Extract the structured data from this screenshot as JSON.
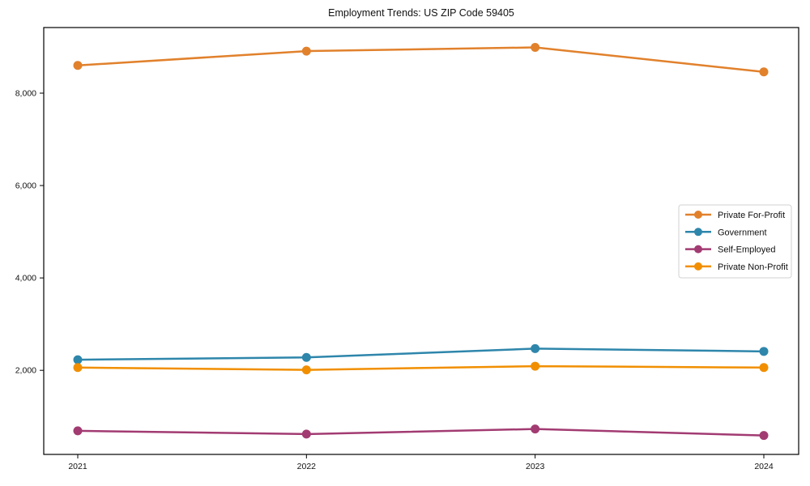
{
  "chart_data": {
    "type": "line",
    "title": "Employment Trends: US ZIP Code 59405",
    "xlabel": "",
    "ylabel": "",
    "grid": false,
    "legend_position": "center-right",
    "x": [
      "2021",
      "2022",
      "2023",
      "2024"
    ],
    "series": [
      {
        "name": "Private For-Profit",
        "color": "#e1812c",
        "values": [
          8600,
          8910,
          8990,
          8460
        ]
      },
      {
        "name": "Government",
        "color": "#2e86ab",
        "values": [
          2230,
          2280,
          2470,
          2410
        ]
      },
      {
        "name": "Self-Employed",
        "color": "#a23b72",
        "values": [
          690,
          620,
          730,
          590
        ]
      },
      {
        "name": "Private Non-Profit",
        "color": "#f18f01",
        "values": [
          2060,
          2010,
          2090,
          2060
        ]
      }
    ],
    "yticks": [
      {
        "value": 2000,
        "label": "2,000"
      },
      {
        "value": 4000,
        "label": "4,000"
      },
      {
        "value": 6000,
        "label": "6,000"
      },
      {
        "value": 8000,
        "label": "8,000"
      }
    ],
    "ylim": [
      180,
      9420
    ]
  }
}
